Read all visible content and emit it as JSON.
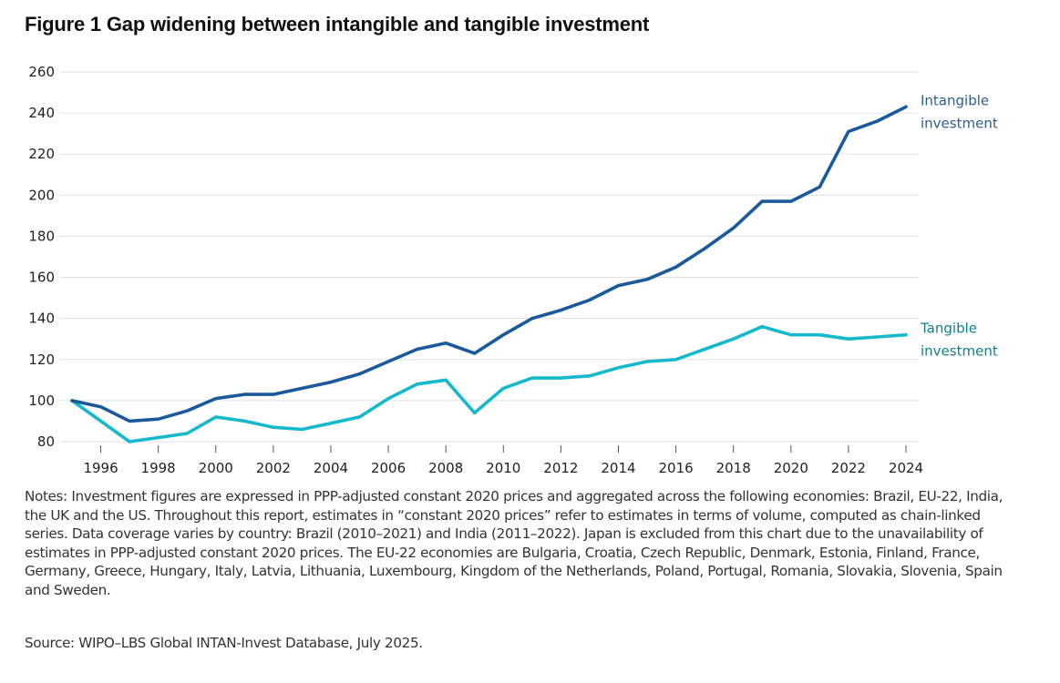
{
  "title": "Figure 1 Gap widening between intangible and tangible investment",
  "notes": "Notes: Investment figures are expressed in PPP-adjusted constant 2020 prices and aggregated across the following economies: Brazil, EU-22, India, the UK and the US. Throughout this report, estimates in “constant 2020 prices” refer to estimates in terms of volume, computed as chain-linked series. Data coverage varies by country: Brazil (2010–2021) and India (2011–2022). Japan is excluded from this chart due to the unavailability of estimates in PPP-adjusted constant 2020 prices. The EU-22 economies are Bulgaria, Croatia, Czech Republic, Denmark, Estonia, Finland, France, Germany, Greece, Hungary, Italy, Latvia, Lithuania, Luxembourg, Kingdom of the Netherlands, Poland, Portugal, Romania, Slovakia, Slovenia, Spain and Sweden.",
  "source": "Source: WIPO–LBS Global INTAN-Invest Database, July 2025.",
  "chart_data": {
    "type": "line",
    "title": "Figure 1 Gap widening between intangible and tangible investment",
    "xlabel": "",
    "ylabel": "",
    "x": [
      1995,
      1996,
      1997,
      1998,
      1999,
      2000,
      2001,
      2002,
      2003,
      2004,
      2005,
      2006,
      2007,
      2008,
      2009,
      2010,
      2011,
      2012,
      2013,
      2014,
      2015,
      2016,
      2017,
      2018,
      2019,
      2020,
      2021,
      2022,
      2023,
      2024
    ],
    "xlim": [
      1995,
      2024
    ],
    "xticks": [
      1996,
      1998,
      2000,
      2002,
      2004,
      2006,
      2008,
      2010,
      2012,
      2014,
      2016,
      2018,
      2020,
      2022,
      2024
    ],
    "ylim": [
      80,
      260
    ],
    "yticks": [
      80,
      100,
      120,
      140,
      160,
      180,
      200,
      220,
      240,
      260
    ],
    "grid": "horizontal",
    "legend": "direct-labels-right",
    "series": [
      {
        "name": "Intangible investment",
        "label_lines": [
          "Intangible",
          "investment"
        ],
        "color": "#1a5a9c",
        "label_color": "#2a5f8f",
        "values": [
          100,
          97,
          90,
          91,
          95,
          101,
          103,
          103,
          106,
          109,
          113,
          119,
          125,
          128,
          123,
          132,
          140,
          144,
          149,
          156,
          159,
          165,
          174,
          184,
          197,
          197,
          204,
          231,
          236,
          243
        ]
      },
      {
        "name": "Tangible investment",
        "label_lines": [
          "Tangible",
          "investment"
        ],
        "color": "#16b8cc",
        "label_color": "#0f7f8f",
        "values": [
          100,
          90,
          80,
          82,
          84,
          92,
          90,
          87,
          86,
          89,
          92,
          101,
          108,
          110,
          94,
          106,
          111,
          111,
          112,
          116,
          119,
          120,
          125,
          130,
          136,
          132,
          132,
          130,
          131,
          132
        ]
      }
    ]
  }
}
